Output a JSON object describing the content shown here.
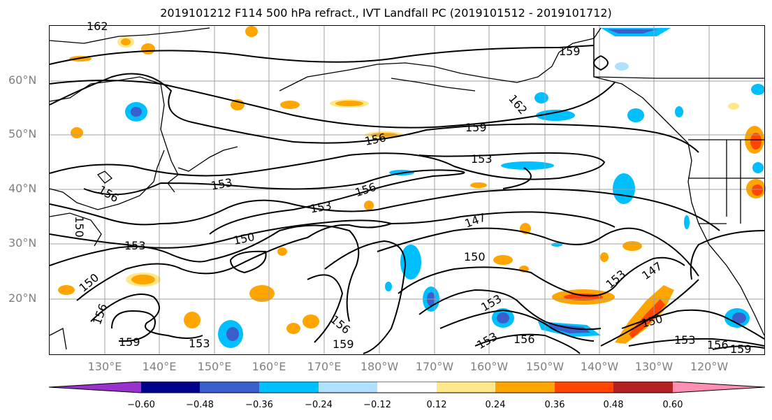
{
  "title": "2019101212 F114 500 hPa refract., IVT Landfall PC (2019101512 - 2019101712)",
  "lat_labels": [
    "60°N",
    "50°N",
    "40°N",
    "30°N",
    "20°N"
  ],
  "lon_labels": [
    "130°E",
    "140°E",
    "150°E",
    "160°E",
    "170°E",
    "180°W",
    "170°W",
    "160°W",
    "150°W",
    "140°W",
    "130°W",
    "120°W"
  ],
  "contour_labels": [
    "162",
    "159",
    "162",
    "159",
    "156",
    "153",
    "156",
    "153",
    "153",
    "156",
    "153",
    "150",
    "147",
    "150",
    "150",
    "147",
    "153",
    "153",
    "156",
    "159",
    "156",
    "159",
    "153",
    "153",
    "150",
    "156",
    "153",
    "156",
    "159",
    "150"
  ],
  "colorbar": {
    "ticks": [
      "−0.60",
      "−0.48",
      "−0.36",
      "−0.24",
      "−0.12",
      "0.12",
      "0.24",
      "0.36",
      "0.48",
      "0.60"
    ],
    "colors": [
      "#9932cc",
      "#00008b",
      "#3a5fcd",
      "#00bfff",
      "#b0e0ff",
      "#ffffff",
      "#ffe88a",
      "#ffa500",
      "#ff4500",
      "#b22222",
      "#ff8fb2"
    ]
  },
  "colors": {
    "contour": "#000000",
    "coast": "#000000",
    "grid": "#a0a0a0",
    "label": "#808080"
  }
}
